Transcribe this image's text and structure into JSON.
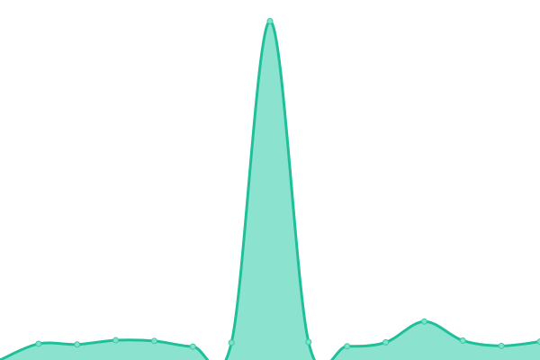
{
  "chart_data": {
    "type": "area",
    "title": "",
    "xlabel": "",
    "ylabel": "",
    "x": [
      0,
      1,
      2,
      3,
      4,
      5,
      6,
      7,
      8,
      9,
      10,
      11,
      12,
      13,
      14
    ],
    "values": [
      0,
      4.6,
      4.4,
      5.6,
      5.4,
      3.8,
      4.9,
      96.0,
      5.1,
      3.9,
      5.0,
      10.9,
      5.5,
      4.0,
      5.2
    ],
    "ylim": [
      0,
      102
    ],
    "grid": false,
    "legend": "none",
    "colors": {
      "line": "#1fbf9a",
      "fill": "#8be3cf",
      "point_fill": "#7fe1ca",
      "point_stroke": "#39c9a7"
    }
  }
}
